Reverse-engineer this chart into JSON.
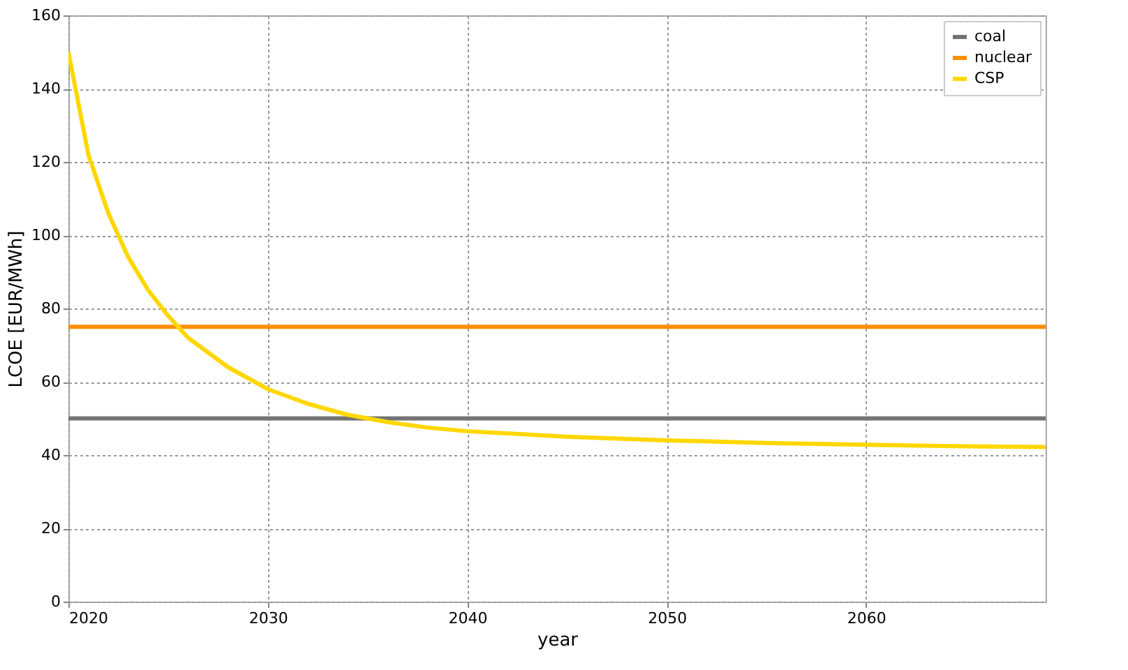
{
  "chart_data": {
    "type": "line",
    "xlabel": "year",
    "ylabel": "LCOE [EUR/MWh]",
    "xlim": [
      2020,
      2069
    ],
    "xticks": [
      2020,
      2030,
      2040,
      2050,
      2060
    ],
    "ylim": [
      0,
      160
    ],
    "yticks": [
      0,
      20,
      40,
      60,
      80,
      100,
      120,
      140,
      160
    ],
    "grid": true,
    "legend": "top right",
    "line_style": "solid",
    "marker": "none",
    "series": [
      {
        "name": "coal",
        "color": "#737373",
        "x": [
          2020,
          2069
        ],
        "values": [
          50,
          50
        ]
      },
      {
        "name": "nuclear",
        "color": "#ff8c00",
        "x": [
          2020,
          2069
        ],
        "values": [
          75,
          75
        ]
      },
      {
        "name": "CSP",
        "color": "#ffd700",
        "x": [
          2020,
          2021,
          2022,
          2023,
          2024,
          2025,
          2026,
          2027,
          2028,
          2029,
          2030,
          2032,
          2034,
          2036,
          2038,
          2040,
          2045,
          2050,
          2055,
          2060,
          2065,
          2069
        ],
        "values": [
          150,
          122,
          106,
          94,
          85,
          78,
          72,
          68,
          64,
          61,
          58,
          54,
          51,
          49,
          47.5,
          46.5,
          45,
          44,
          43.3,
          42.8,
          42.4,
          42.2
        ]
      }
    ]
  }
}
